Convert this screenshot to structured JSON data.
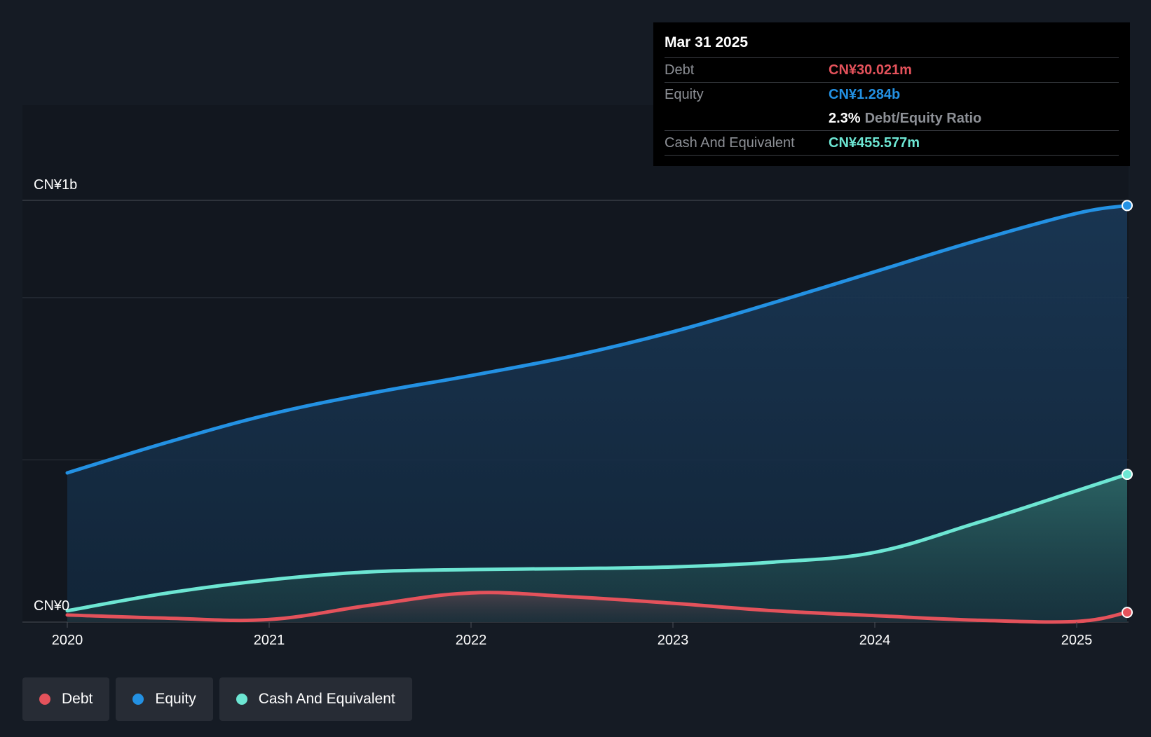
{
  "chart_data": {
    "type": "area",
    "x": [
      2020.0,
      2020.5,
      2021.0,
      2021.5,
      2022.0,
      2022.5,
      2023.0,
      2023.5,
      2024.0,
      2024.5,
      2025.0,
      2025.25
    ],
    "x_ticks": [
      "2020",
      "2021",
      "2022",
      "2023",
      "2024",
      "2025"
    ],
    "y_axis_labels": {
      "top": "CN¥1b",
      "bottom": "CN¥0"
    },
    "ylim": [
      0,
      1300
    ],
    "gridlines": [
      1300,
      1000,
      500
    ],
    "series": [
      {
        "name": "Equity",
        "color": "#2391e3",
        "values": [
          460,
          555,
          640,
          705,
          760,
          820,
          895,
          985,
          1080,
          1175,
          1260,
          1284
        ]
      },
      {
        "name": "Cash And Equivalent",
        "color": "#6de6d3",
        "values": [
          35,
          90,
          130,
          155,
          162,
          165,
          170,
          185,
          215,
          305,
          405,
          455.577
        ]
      },
      {
        "name": "Debt",
        "color": "#e4525b",
        "values": [
          22,
          12,
          8,
          52,
          90,
          78,
          58,
          35,
          20,
          6,
          2,
          30.021
        ]
      }
    ]
  },
  "tooltip": {
    "date": "Mar 31 2025",
    "debt_label": "Debt",
    "debt_value": "CN¥30.021m",
    "equity_label": "Equity",
    "equity_value": "CN¥1.284b",
    "ratio_value": "2.3%",
    "ratio_label": "Debt/Equity Ratio",
    "cash_label": "Cash And Equivalent",
    "cash_value": "CN¥455.577m"
  },
  "legend": [
    {
      "label": "Debt",
      "color": "#e4525b"
    },
    {
      "label": "Equity",
      "color": "#2391e3"
    },
    {
      "label": "Cash And Equivalent",
      "color": "#6de6d3"
    }
  ],
  "colors": {
    "background": "#151b24",
    "debt": "#e4525b",
    "equity": "#2391e3",
    "cash": "#6de6d3"
  }
}
